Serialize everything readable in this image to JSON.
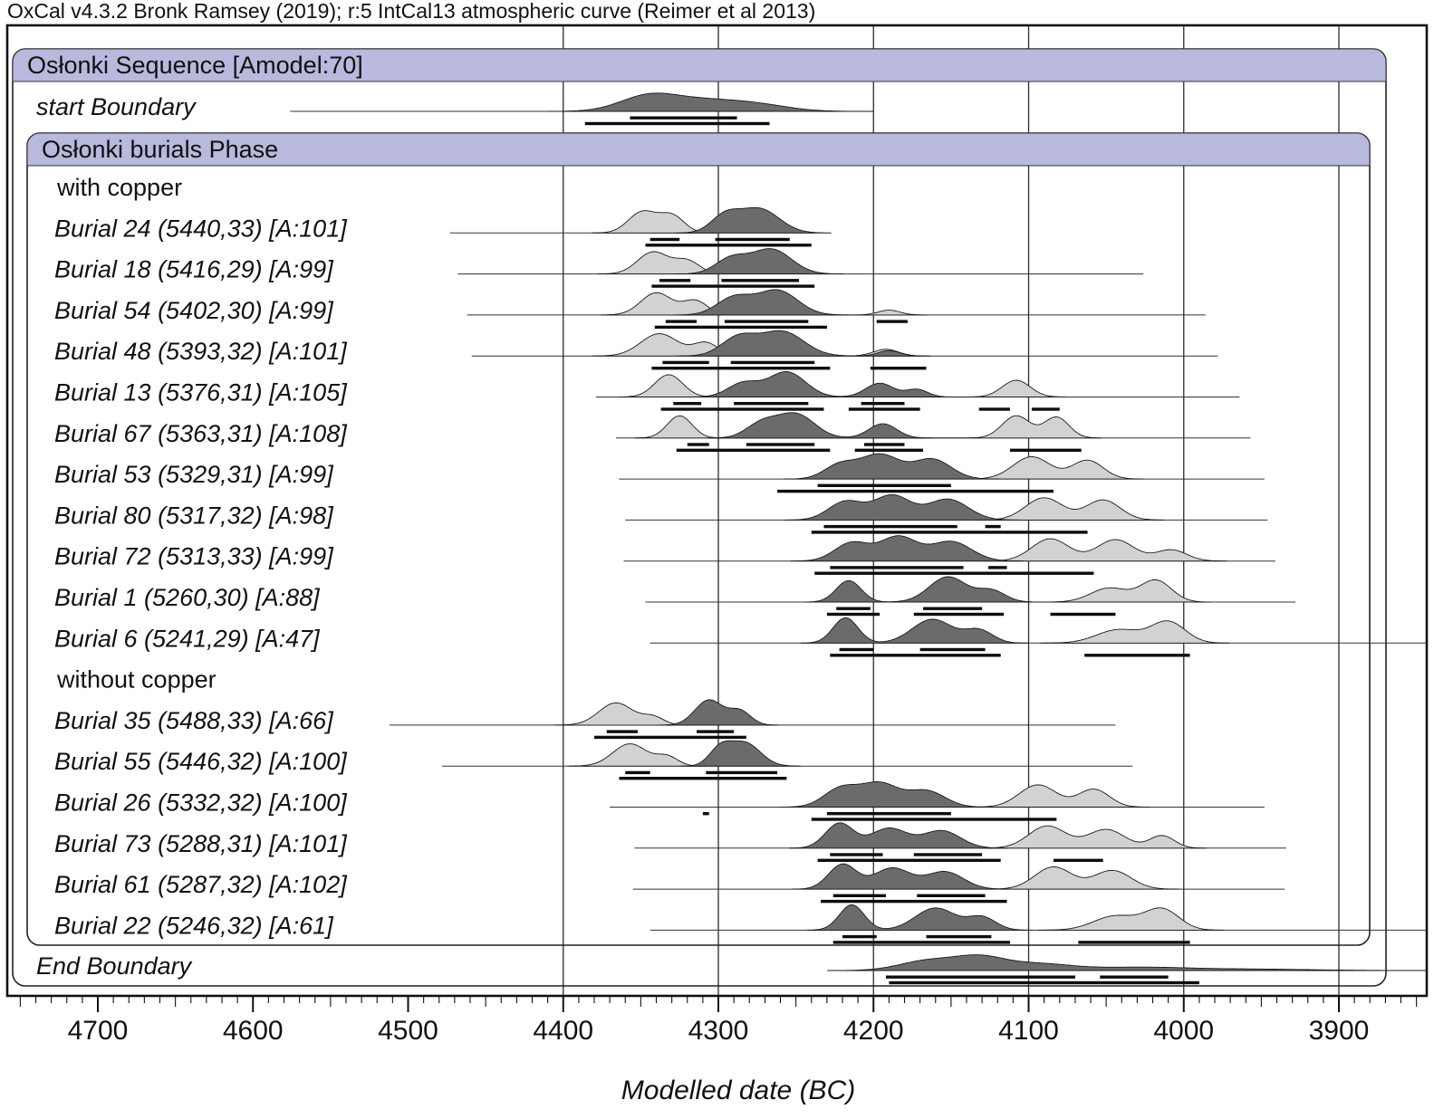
{
  "title": "OxCal v4.3.2 Bronk Ramsey (2019); r:5 IntCal13 atmospheric curve (Reimer et al 2013)",
  "chart_data": {
    "type": "area",
    "variant": "oxcal-sequence-multiplot",
    "xlabel": "Modelled date (BC)",
    "x_axis": {
      "min": 4758,
      "max": 3843,
      "direction": "decreasing",
      "major_ticks": [
        4700,
        4600,
        4500,
        4400,
        4300,
        4200,
        4100,
        4000,
        3900
      ],
      "minor_tick_step": 10,
      "gridlines": [
        4400,
        4300,
        4200,
        4100,
        4000,
        3900
      ]
    },
    "sequence": {
      "label": "Osłonki Sequence [Amodel:70]"
    },
    "phase": {
      "label": "Osłonki burials Phase"
    },
    "colors": {
      "band": "#b8b9dc",
      "dark_fill": "#6b6b6b",
      "light_fill": "#d2d2d2",
      "outline": "#1a1a1a",
      "bar": "#0d0d0d"
    },
    "rows": [
      {
        "kind": "boundary",
        "label": "start Boundary",
        "amp": 0.72,
        "line": [
          4576,
          4243
        ],
        "dark": [
          [
            4346,
            18,
            1
          ],
          [
            4310,
            25,
            0.8
          ],
          [
            4272,
            20,
            0.35
          ]
        ],
        "bars68": [
          [
            4357,
            4288
          ]
        ],
        "bars95": [
          [
            4386,
            4267
          ]
        ]
      },
      {
        "kind": "group",
        "label": "with copper"
      },
      {
        "kind": "burial",
        "label": "Burial 24 (5440,33) [A:101]",
        "line": [
          4473,
          4237
        ],
        "light": [
          [
            4349,
            9,
            0.55
          ],
          [
            4330,
            8,
            0.45
          ]
        ],
        "dark": [
          [
            4296,
            9,
            0.65
          ],
          [
            4274,
            13,
            1
          ]
        ],
        "bars68": [
          [
            4344,
            4325
          ],
          [
            4302,
            4254
          ]
        ],
        "bars95": [
          [
            4347,
            4240
          ]
        ]
      },
      {
        "kind": "burial",
        "label": "Burial 18 (5416,29) [A:99]",
        "line": [
          4468,
          4026
        ],
        "light": [
          [
            4342,
            10,
            0.6
          ],
          [
            4320,
            8,
            0.35
          ]
        ],
        "dark": [
          [
            4292,
            10,
            0.6
          ],
          [
            4266,
            13,
            1
          ]
        ],
        "bars68": [
          [
            4338,
            4318
          ],
          [
            4298,
            4248
          ]
        ],
        "bars95": [
          [
            4343,
            4238
          ]
        ]
      },
      {
        "kind": "burial",
        "label": "Burial 54 (5402,30) [A:99]",
        "line": [
          4462,
          3986
        ],
        "light": [
          [
            4340,
            10,
            0.55
          ],
          [
            4315,
            8,
            0.35
          ],
          [
            4190,
            7,
            0.12
          ]
        ],
        "dark": [
          [
            4290,
            11,
            0.7
          ],
          [
            4262,
            13,
            1
          ]
        ],
        "bars68": [
          [
            4334,
            4314
          ],
          [
            4296,
            4242
          ],
          [
            4198,
            4178
          ]
        ],
        "bars95": [
          [
            4341,
            4230
          ]
        ]
      },
      {
        "kind": "burial",
        "label": "Burial 48 (5393,32) [A:101]",
        "line": [
          4459,
          3978
        ],
        "light": [
          [
            4338,
            12,
            0.6
          ],
          [
            4308,
            8,
            0.35
          ],
          [
            4192,
            8,
            0.18
          ]
        ],
        "dark": [
          [
            4287,
            11,
            0.75
          ],
          [
            4259,
            14,
            1
          ],
          [
            4190,
            7,
            0.22
          ]
        ],
        "bars68": [
          [
            4336,
            4306
          ],
          [
            4292,
            4238
          ]
        ],
        "bars95": [
          [
            4343,
            4228
          ],
          [
            4202,
            4166
          ]
        ]
      },
      {
        "kind": "burial",
        "label": "Burial 13 (5376,31) [A:105]",
        "line": [
          4379,
          3964
        ],
        "light": [
          [
            4332,
            9,
            0.4
          ],
          [
            4108,
            9,
            0.3
          ]
        ],
        "dark": [
          [
            4284,
            10,
            0.55
          ],
          [
            4256,
            12,
            1
          ],
          [
            4196,
            9,
            0.55
          ],
          [
            4172,
            7,
            0.3
          ]
        ],
        "bars68": [
          [
            4329,
            4311
          ],
          [
            4290,
            4242
          ],
          [
            4208,
            4180
          ]
        ],
        "bars95": [
          [
            4337,
            4232
          ],
          [
            4216,
            4170
          ],
          [
            4132,
            4112
          ],
          [
            4098,
            4080
          ]
        ]
      },
      {
        "kind": "burial",
        "label": "Burial 67 (5363,31) [A:108]",
        "line": [
          4366,
          3957
        ],
        "light": [
          [
            4325,
            8,
            0.3
          ],
          [
            4108,
            9,
            0.3
          ],
          [
            4082,
            8,
            0.28
          ]
        ],
        "dark": [
          [
            4272,
            10,
            0.6
          ],
          [
            4250,
            12,
            1
          ],
          [
            4194,
            9,
            0.6
          ]
        ],
        "bars68": [
          [
            4320,
            4306
          ],
          [
            4282,
            4238
          ],
          [
            4206,
            4180
          ]
        ],
        "bars95": [
          [
            4327,
            4228
          ],
          [
            4212,
            4168
          ],
          [
            4112,
            4066
          ]
        ]
      },
      {
        "kind": "burial",
        "label": "Burial 53 (5329,31) [A:99]",
        "line": [
          4364,
          3948
        ],
        "light": [
          [
            4098,
            12,
            0.5
          ],
          [
            4062,
            10,
            0.42
          ]
        ],
        "dark": [
          [
            4222,
            10,
            0.55
          ],
          [
            4196,
            13,
            1
          ],
          [
            4162,
            12,
            0.8
          ]
        ],
        "bars68": [
          [
            4236,
            4150
          ]
        ],
        "bars95": [
          [
            4262,
            4084
          ]
        ]
      },
      {
        "kind": "burial",
        "label": "Burial 80 (5317,32) [A:98]",
        "line": [
          4360,
          3946
        ],
        "light": [
          [
            4090,
            12,
            0.5
          ],
          [
            4052,
            11,
            0.45
          ]
        ],
        "dark": [
          [
            4218,
            11,
            0.75
          ],
          [
            4188,
            12,
            1
          ],
          [
            4152,
            13,
            0.85
          ]
        ],
        "bars68": [
          [
            4232,
            4146
          ],
          [
            4128,
            4118
          ]
        ],
        "bars95": [
          [
            4240,
            4062
          ]
        ]
      },
      {
        "kind": "burial",
        "label": "Burial 72 (5313,33) [A:99]",
        "line": [
          4361,
          3941
        ],
        "light": [
          [
            4086,
            12,
            0.5
          ],
          [
            4044,
            12,
            0.48
          ],
          [
            4008,
            10,
            0.25
          ]
        ],
        "dark": [
          [
            4214,
            11,
            0.75
          ],
          [
            4184,
            12,
            1
          ],
          [
            4150,
            13,
            0.8
          ]
        ],
        "bars68": [
          [
            4228,
            4142
          ],
          [
            4126,
            4114
          ]
        ],
        "bars95": [
          [
            4238,
            4058
          ]
        ]
      },
      {
        "kind": "burial",
        "label": "Burial 1 (5260,30) [A:88]",
        "line": [
          4347,
          3928
        ],
        "light": [
          [
            4048,
            12,
            0.55
          ],
          [
            4018,
            10,
            0.85
          ]
        ],
        "dark": [
          [
            4216,
            8,
            0.85
          ],
          [
            4152,
            12,
            1
          ],
          [
            4124,
            9,
            0.45
          ]
        ],
        "bars68": [
          [
            4224,
            4202
          ],
          [
            4168,
            4130
          ]
        ],
        "bars95": [
          [
            4230,
            4196
          ],
          [
            4174,
            4116
          ],
          [
            4086,
            4044
          ]
        ]
      },
      {
        "kind": "burial",
        "label": "Burial 6 (5241,29) [A:47]",
        "line": [
          4344,
          3839
        ],
        "light": [
          [
            4042,
            14,
            0.6
          ],
          [
            4010,
            11,
            0.95
          ]
        ],
        "dark": [
          [
            4218,
            8,
            0.8
          ],
          [
            4162,
            13,
            0.75
          ],
          [
            4132,
            9,
            0.4
          ]
        ],
        "bars68": [
          [
            4222,
            4200
          ],
          [
            4170,
            4128
          ]
        ],
        "bars95": [
          [
            4228,
            4118
          ],
          [
            4064,
            3996
          ]
        ]
      },
      {
        "kind": "group",
        "label": "without copper"
      },
      {
        "kind": "burial",
        "label": "Burial 35 (5488,33) [A:66]",
        "line": [
          4512,
          4044
        ],
        "light": [
          [
            4366,
            11,
            1
          ],
          [
            4342,
            7,
            0.35
          ]
        ],
        "dark": [
          [
            4306,
            9,
            1
          ],
          [
            4286,
            7,
            0.55
          ]
        ],
        "bars68": [
          [
            4372,
            4352
          ],
          [
            4314,
            4290
          ]
        ],
        "bars95": [
          [
            4380,
            4282
          ]
        ]
      },
      {
        "kind": "burial",
        "label": "Burial 55 (5446,32) [A:100]",
        "line": [
          4478,
          4033
        ],
        "light": [
          [
            4357,
            11,
            0.85
          ],
          [
            4333,
            7,
            0.35
          ]
        ],
        "dark": [
          [
            4299,
            7,
            0.7
          ],
          [
            4283,
            10,
            1
          ]
        ],
        "bars68": [
          [
            4360,
            4344
          ],
          [
            4308,
            4262
          ]
        ],
        "bars95": [
          [
            4364,
            4256
          ]
        ]
      },
      {
        "kind": "burial",
        "label": "Burial 26 (5332,32) [A:100]",
        "line": [
          4370,
          3948
        ],
        "light": [
          [
            4094,
            12,
            0.5
          ],
          [
            4058,
            10,
            0.4
          ]
        ],
        "dark": [
          [
            4221,
            11,
            0.8
          ],
          [
            4196,
            12,
            1
          ],
          [
            4166,
            12,
            0.7
          ]
        ],
        "bars68": [
          [
            4310,
            4306
          ],
          [
            4230,
            4150
          ]
        ],
        "bars95": [
          [
            4240,
            4082
          ]
        ]
      },
      {
        "kind": "burial",
        "label": "Burial 73 (5288,31) [A:101]",
        "line": [
          4354,
          3934
        ],
        "light": [
          [
            4088,
            12,
            0.5
          ],
          [
            4050,
            12,
            0.42
          ],
          [
            4014,
            8,
            0.28
          ]
        ],
        "dark": [
          [
            4222,
            9,
            1
          ],
          [
            4190,
            12,
            0.8
          ],
          [
            4156,
            12,
            0.7
          ]
        ],
        "bars68": [
          [
            4228,
            4194
          ],
          [
            4174,
            4130
          ]
        ],
        "bars95": [
          [
            4236,
            4118
          ],
          [
            4084,
            4052
          ]
        ]
      },
      {
        "kind": "burial",
        "label": "Burial 61 (5287,32) [A:102]",
        "line": [
          4355,
          3935
        ],
        "light": [
          [
            4084,
            12,
            0.5
          ],
          [
            4046,
            12,
            0.42
          ]
        ],
        "dark": [
          [
            4220,
            9,
            1
          ],
          [
            4188,
            12,
            0.85
          ],
          [
            4154,
            12,
            0.7
          ]
        ],
        "bars68": [
          [
            4226,
            4192
          ],
          [
            4172,
            4128
          ]
        ],
        "bars95": [
          [
            4234,
            4114
          ]
        ]
      },
      {
        "kind": "burial",
        "label": "Burial 22 (5246,32) [A:61]",
        "line": [
          4344,
          3839
        ],
        "light": [
          [
            4044,
            14,
            0.65
          ],
          [
            4014,
            11,
            0.95
          ]
        ],
        "dark": [
          [
            4214,
            8,
            0.8
          ],
          [
            4160,
            13,
            0.7
          ],
          [
            4130,
            9,
            0.4
          ]
        ],
        "bars68": [
          [
            4220,
            4198
          ],
          [
            4166,
            4124
          ]
        ],
        "bars95": [
          [
            4226,
            4112
          ],
          [
            4068,
            3996
          ]
        ]
      },
      {
        "kind": "boundary",
        "label": "End Boundary",
        "amp": 0.62,
        "line": [
          4199,
          3839
        ],
        "dark": [
          [
            4165,
            18,
            0.8
          ],
          [
            4132,
            16,
            1
          ],
          [
            4095,
            22,
            0.55
          ],
          [
            4030,
            30,
            0.25
          ],
          [
            3960,
            40,
            0.12
          ]
        ],
        "bars68": [
          [
            4192,
            4070
          ],
          [
            4054,
            4010
          ]
        ],
        "bars95": [
          [
            4190,
            3990
          ]
        ]
      }
    ]
  }
}
